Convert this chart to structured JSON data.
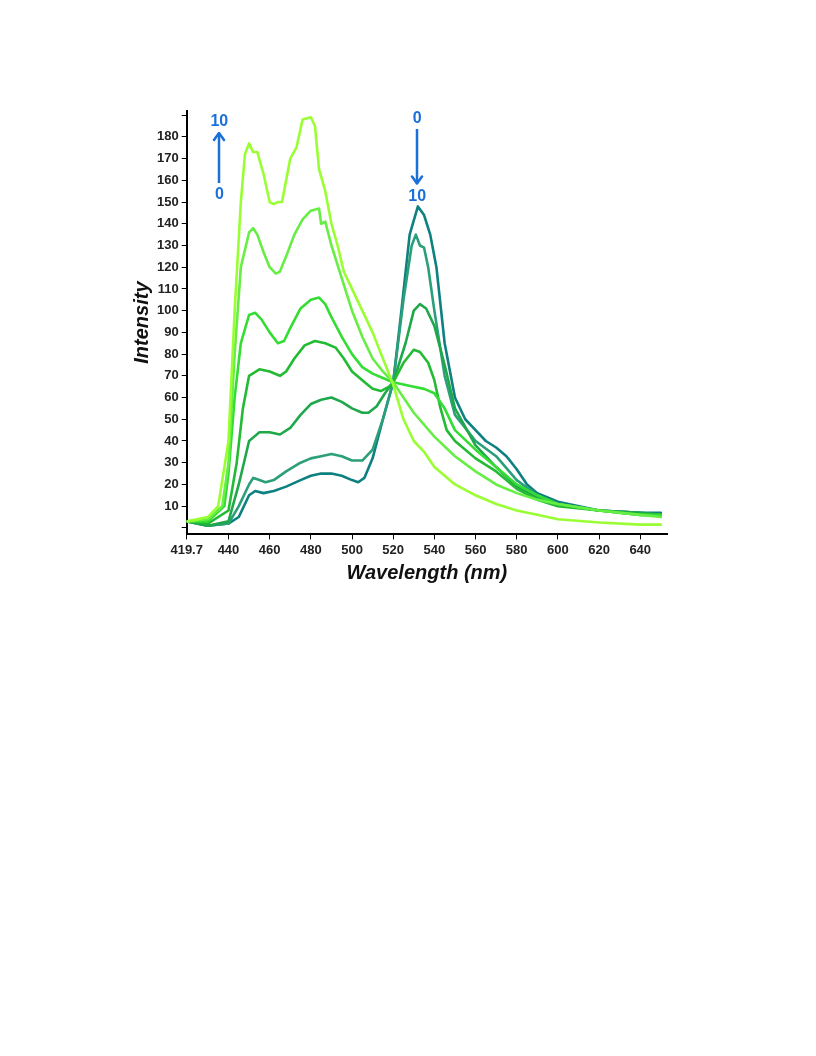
{
  "chart_data": {
    "type": "line",
    "xlabel": "Wavelength (nm)",
    "ylabel": "Intensity",
    "xlim": [
      419.7,
      653
    ],
    "xticks": [
      419.7,
      440,
      460,
      480,
      500,
      520,
      540,
      560,
      580,
      600,
      620,
      640
    ],
    "ylim": [
      -3,
      192
    ],
    "yticks": [
      {
        "value": 0,
        "label": null
      },
      10,
      20,
      30,
      40,
      50,
      60,
      70,
      80,
      90,
      100,
      110,
      120,
      130,
      140,
      150,
      160,
      170,
      180,
      {
        "value": 190,
        "label": null
      }
    ],
    "grid": false,
    "legend": false,
    "marker": "none",
    "line_style": "solid",
    "annotations": [
      "0",
      "10",
      "0",
      "10"
    ],
    "series": [
      {
        "color": "#99ff33",
        "x": [
          420,
          430,
          435,
          440,
          443,
          446,
          448,
          450,
          452,
          454,
          457,
          460,
          462,
          464,
          466,
          468,
          470,
          473,
          476,
          480,
          482,
          484,
          487,
          490,
          493,
          496,
          500,
          505,
          510,
          515,
          520,
          525,
          530,
          535,
          540,
          550,
          560,
          570,
          580,
          590,
          600,
          620,
          640,
          650
        ],
        "values": [
          3,
          5,
          10,
          40,
          100,
          150,
          172,
          177,
          173,
          173,
          163,
          150,
          149,
          150,
          150,
          160,
          170,
          175,
          188,
          189,
          185,
          165,
          155,
          140,
          130,
          118,
          110,
          100,
          90,
          78,
          66,
          50,
          40,
          35,
          28,
          20,
          15,
          11,
          8,
          6,
          4,
          2.5,
          1.5,
          1.5
        ]
      },
      {
        "color": "#66ee44",
        "x": [
          420,
          430,
          437,
          440,
          443,
          446,
          450,
          452,
          454,
          457,
          460,
          463,
          465,
          468,
          472,
          476,
          480,
          484,
          485,
          487,
          490,
          495,
          500,
          505,
          510,
          515,
          520,
          525,
          530,
          540,
          550,
          560,
          570,
          580,
          590,
          600,
          620,
          640,
          650
        ],
        "values": [
          3,
          4,
          10,
          30,
          80,
          120,
          136,
          138,
          135,
          127,
          120,
          117,
          118,
          125,
          135,
          142,
          146,
          147,
          140,
          141,
          130,
          115,
          100,
          88,
          78,
          72,
          67,
          60,
          53,
          42,
          33,
          26,
          20,
          16,
          13,
          11,
          8,
          6,
          5
        ]
      },
      {
        "color": "#33dd33",
        "x": [
          420,
          430,
          438,
          440,
          443,
          446,
          450,
          453,
          456,
          460,
          464,
          467,
          470,
          475,
          480,
          484,
          487,
          490,
          495,
          500,
          505,
          510,
          515,
          520,
          525,
          530,
          535,
          540,
          545,
          550,
          560,
          570,
          580,
          590,
          600,
          620,
          640,
          650
        ],
        "values": [
          3,
          3,
          10,
          25,
          60,
          85,
          98,
          99,
          96,
          90,
          85,
          86,
          92,
          101,
          105,
          106,
          103,
          97,
          88,
          80,
          74,
          71,
          69,
          67,
          66,
          65,
          64,
          62,
          55,
          45,
          36,
          28,
          20,
          15,
          11,
          8,
          6,
          6
        ]
      },
      {
        "color": "#22bb33",
        "x": [
          420,
          430,
          440,
          444,
          447,
          450,
          455,
          460,
          465,
          468,
          472,
          477,
          482,
          487,
          492,
          496,
          500,
          505,
          510,
          514,
          518,
          520,
          525,
          530,
          533,
          537,
          540,
          543,
          546,
          550,
          560,
          570,
          580,
          590,
          600,
          620,
          640,
          650
        ],
        "values": [
          3,
          2,
          8,
          30,
          55,
          70,
          73,
          72,
          70,
          72,
          78,
          84,
          86,
          85,
          83,
          78,
          72,
          68,
          64,
          63,
          65,
          67,
          76,
          82,
          81,
          76,
          68,
          55,
          45,
          40,
          32,
          26,
          18,
          13,
          10,
          8,
          6,
          6
        ]
      },
      {
        "color": "#1fa84a",
        "x": [
          420,
          430,
          440,
          445,
          450,
          455,
          460,
          465,
          470,
          475,
          480,
          485,
          490,
          495,
          500,
          505,
          508,
          512,
          516,
          520,
          526,
          530,
          533,
          536,
          540,
          545,
          550,
          560,
          570,
          580,
          590,
          600,
          620,
          640,
          650
        ],
        "values": [
          3,
          1,
          3,
          20,
          40,
          44,
          44,
          43,
          46,
          52,
          57,
          59,
          60,
          58,
          55,
          53,
          53,
          56,
          62,
          67,
          85,
          100,
          103,
          101,
          93,
          75,
          55,
          38,
          28,
          19,
          14,
          11,
          8,
          7,
          6
        ]
      },
      {
        "color": "#2a9f7a",
        "x": [
          420,
          430,
          440,
          445,
          450,
          452,
          455,
          458,
          462,
          468,
          475,
          480,
          485,
          490,
          495,
          500,
          505,
          510,
          515,
          520,
          525,
          529,
          531,
          533,
          535,
          537,
          540,
          545,
          550,
          560,
          570,
          580,
          590,
          600,
          620,
          640,
          650
        ],
        "values": [
          3,
          1,
          2,
          10,
          20,
          23,
          22,
          21,
          22,
          26,
          30,
          32,
          33,
          34,
          33,
          31,
          31,
          36,
          50,
          67,
          105,
          130,
          135,
          130,
          129,
          120,
          100,
          70,
          52,
          40,
          33,
          22,
          15,
          11,
          8,
          7,
          6
        ]
      },
      {
        "color": "#0e8080",
        "x": [
          420,
          430,
          440,
          445,
          450,
          453,
          457,
          462,
          468,
          475,
          480,
          485,
          490,
          495,
          500,
          503,
          506,
          510,
          515,
          520,
          524,
          528,
          532,
          535,
          538,
          541,
          545,
          550,
          555,
          560,
          565,
          570,
          575,
          580,
          585,
          590,
          600,
          620,
          640,
          650
        ],
        "values": [
          3,
          1,
          2,
          5,
          15,
          17,
          16,
          17,
          19,
          22,
          24,
          25,
          25,
          24,
          22,
          21,
          23,
          32,
          50,
          67,
          100,
          135,
          148,
          144,
          135,
          120,
          85,
          60,
          50,
          45,
          40,
          37,
          33,
          27,
          20,
          16,
          12,
          8,
          7,
          7
        ]
      }
    ]
  }
}
